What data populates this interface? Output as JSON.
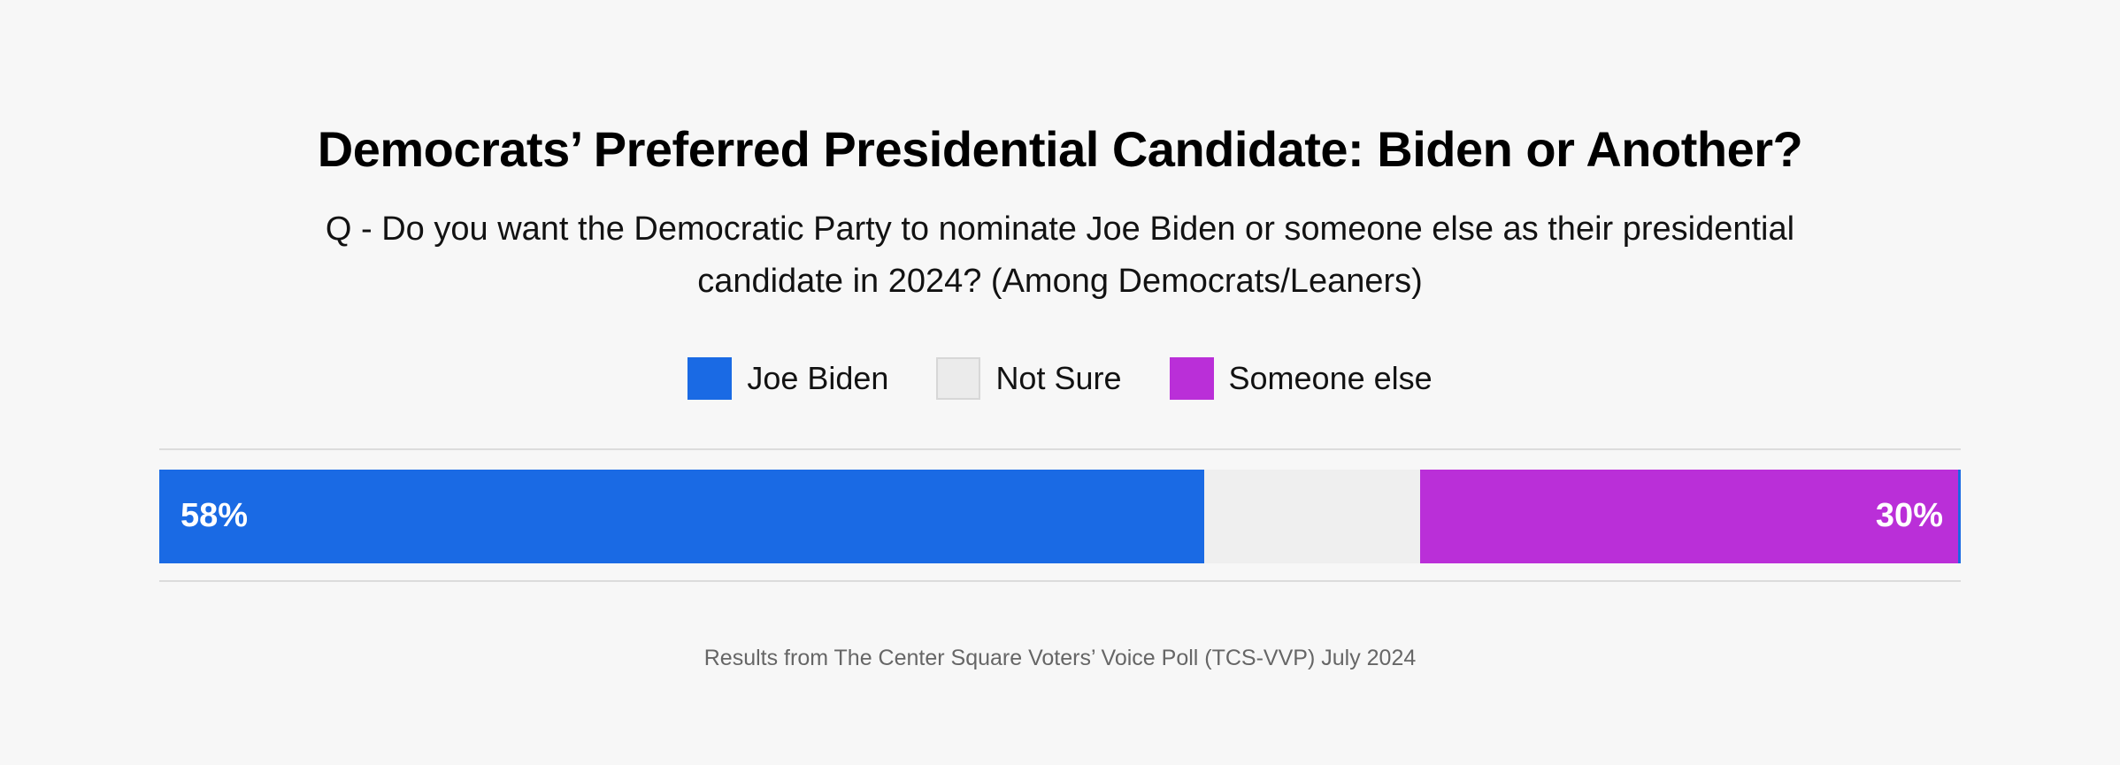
{
  "page": {
    "background": "#f7f7f7"
  },
  "header": {
    "title": "Democrats’ Preferred Presidential Candidate: Biden or Another?",
    "subtitle_lines": [
      "Q - Do you want the Democratic Party to nominate Joe Biden or someone else as their presidential",
      "candidate in 2024? (Among Democrats/Leaners)"
    ]
  },
  "legend": {
    "items": [
      {
        "label": "Joe Biden",
        "color": "#1a6ae4",
        "border": "#1a6ae4"
      },
      {
        "label": "Not Sure",
        "color": "#ebebeb",
        "border": "#d7d7d7"
      },
      {
        "label": "Someone else",
        "color": "#ba2fd8",
        "border": "#ba2fd8"
      }
    ]
  },
  "footer": {
    "source": "Results from The Center Square Voters’ Voice Poll (TCS-VVP) July 2024"
  },
  "chart_data": {
    "type": "bar",
    "subtype": "horizontal-stacked-single-row",
    "title": "Democrats’ Preferred Presidential Candidate: Biden or Another?",
    "subtitle": "Q - Do you want the Democratic Party to nominate Joe Biden or someone else as their presidential candidate in 2024? (Among Democrats/Leaners)",
    "source_note": "Results from The Center Square Voters’ Voice Poll (TCS-VVP) July 2024",
    "categories": [
      "Joe Biden",
      "Not Sure",
      "Someone else"
    ],
    "values": [
      58,
      12,
      30
    ],
    "unit": "percent",
    "xlim": [
      0,
      100
    ],
    "colors": [
      "#1a6ae4",
      "#efefef",
      "#ba2fd8"
    ],
    "data_labels": [
      "58%",
      "",
      "30%"
    ],
    "label_color": "#ffffff",
    "legend_position": "top",
    "grid": false,
    "divider_color": "#dcdcdc",
    "right_edge_color": "#1a6ae4"
  }
}
